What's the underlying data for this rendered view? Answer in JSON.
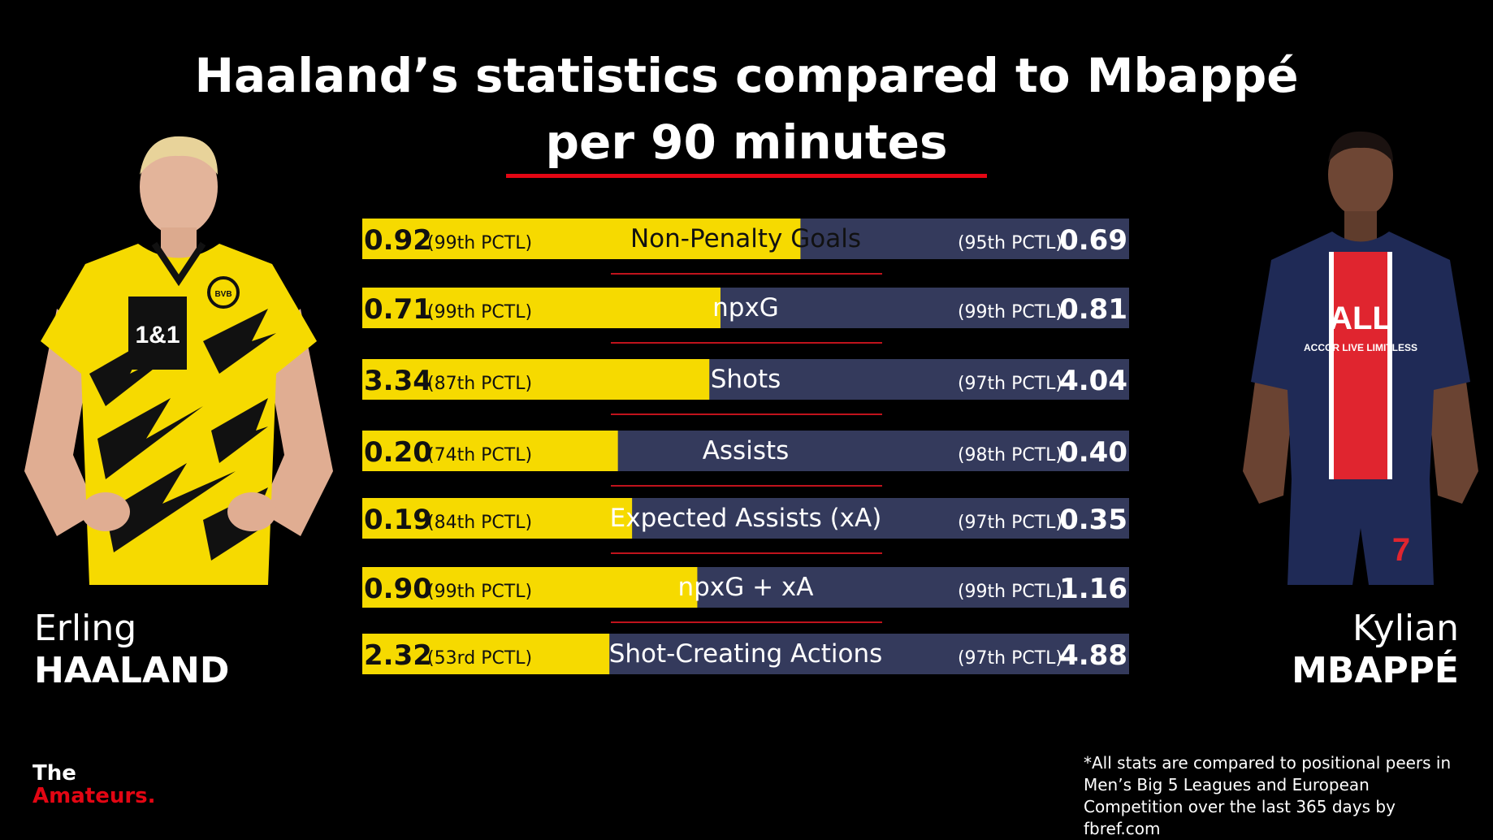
{
  "title_line1": "Haaland’s statistics compared to Mbappé",
  "title_line2": "per 90 minutes",
  "players": {
    "left": {
      "first": "Erling",
      "last": "HAALAND"
    },
    "right": {
      "first": "Kylian",
      "last": "MBAPPÉ"
    }
  },
  "logo": {
    "line1": "The",
    "line2": "Amateurs."
  },
  "footnote": "*All stats are compared to positional peers in Men’s Big 5 Leagues and European Competition over the last 365 days by fbref.com",
  "colors": {
    "haaland": "#f6da00",
    "mbappe": "#343a5c",
    "accent": "#e30613"
  },
  "chart_data": {
    "type": "bar",
    "categories": [
      "Non-Penalty Goals",
      "npxG",
      "Shots",
      "Assists",
      "Expected Assists (xA)",
      "npxG + xA",
      "Shot-Creating Actions"
    ],
    "series": [
      {
        "name": "HAALAND",
        "values": [
          0.92,
          0.71,
          3.34,
          0.2,
          0.19,
          0.9,
          2.32
        ],
        "labels": [
          "0.92",
          "0.71",
          "3.34",
          "0.20",
          "0.19",
          "0.90",
          "2.32"
        ],
        "percentile_labels": [
          "(99th PCTL)",
          "(99th PCTL)",
          "(87th PCTL)",
          "(74th PCTL)",
          "(84th PCTL)",
          "(99th PCTL)",
          "(53rd PCTL)"
        ]
      },
      {
        "name": "MBAPPÉ",
        "values": [
          0.69,
          0.81,
          4.04,
          0.4,
          0.35,
          1.16,
          4.88
        ],
        "labels": [
          "0.69",
          "0.81",
          "4.04",
          "0.40",
          "0.35",
          "1.16",
          "4.88"
        ],
        "percentile_labels": [
          "(95th PCTL)",
          "(99th PCTL)",
          "(97th PCTL)",
          "(98th PCTL)",
          "(97th PCTL)",
          "(99th PCTL)",
          "(97th PCTL)"
        ]
      }
    ],
    "title": "Haaland’s statistics compared to Mbappé per 90 minutes",
    "xlabel": "",
    "ylabel": ""
  }
}
